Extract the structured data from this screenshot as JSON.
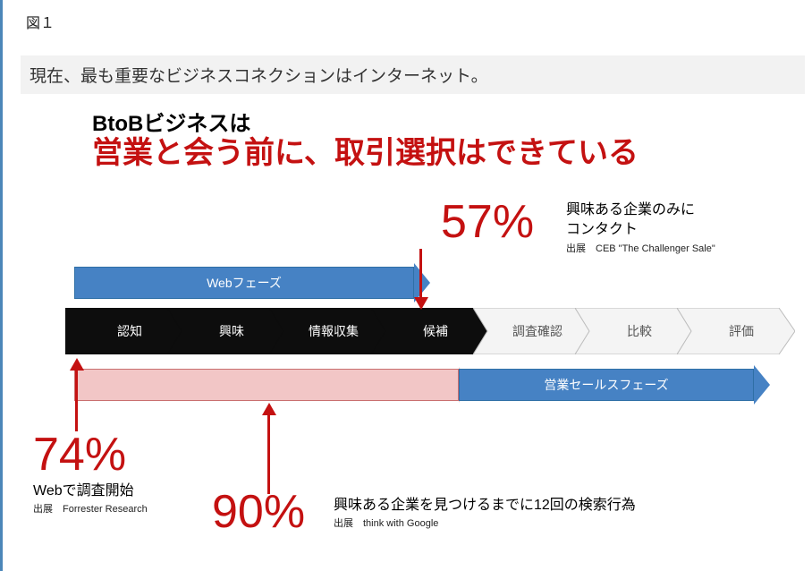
{
  "figure_label": "図１",
  "sub_header": "現在、最も重要なビジネスコネクションはインターネット。",
  "title_small": "BtoBビジネスは",
  "title_big": "営業と会う前に、取引選択はできている",
  "colors": {
    "accent_red": "#c41111",
    "phase_blue": "#4682c4",
    "phase_blue_dark": "#2f6fa6",
    "chevron_dark": "#0d0d0d",
    "chevron_light_fill": "#f4f4f4",
    "chevron_light_stroke": "#bcbcbc",
    "research_pink_fill": "#f2c6c6",
    "research_pink_stroke": "#c96f6f",
    "subheader_bg": "#f2f2f2"
  },
  "web_phase_label": "Webフェーズ",
  "sales_phase_label": "営業セールスフェーズ",
  "chevrons": [
    {
      "label": "認知",
      "dark": true
    },
    {
      "label": "興味",
      "dark": true
    },
    {
      "label": "情報収集",
      "dark": true
    },
    {
      "label": "候補",
      "dark": true
    },
    {
      "label": "調査確認",
      "dark": false
    },
    {
      "label": "比較",
      "dark": false
    },
    {
      "label": "評価",
      "dark": false
    }
  ],
  "callout_57": {
    "pct": "57%",
    "text1": "興味ある企業のみに",
    "text2": "コンタクト",
    "source": "出展　CEB \"The Challenger Sale\""
  },
  "callout_74": {
    "pct": "74%",
    "text": "Webで調査開始",
    "source": "出展　Forrester Research"
  },
  "callout_90": {
    "pct": "90%",
    "text": "興味ある企業を見つけるまでに12回の検索行為",
    "source": "出展　think with Google"
  },
  "layout": {
    "chevron_start_x": 0,
    "chevron_width": 114,
    "chevron_overlap": 0
  }
}
